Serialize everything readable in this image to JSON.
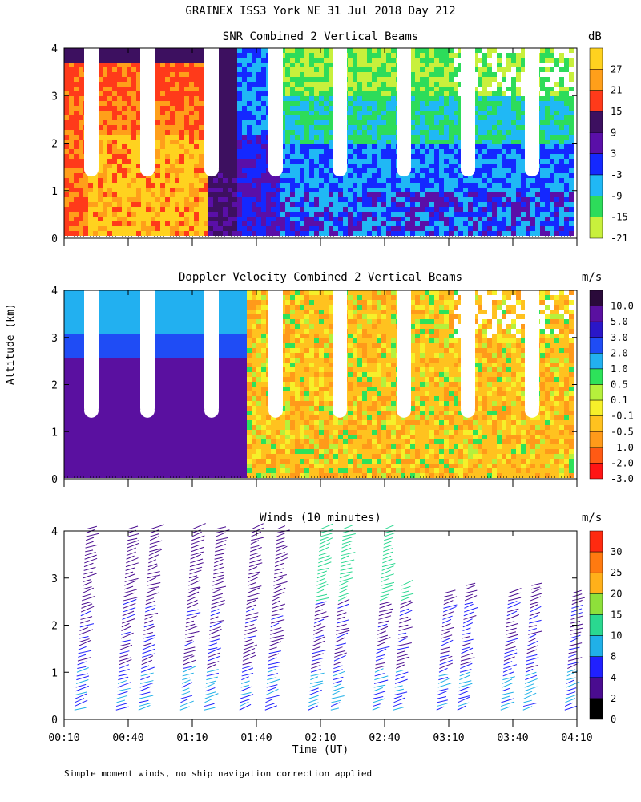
{
  "figure": {
    "title": "GRAINEX ISS3 York NE  31 Jul 2018 Day 212",
    "shared_ylabel": "Altitude (km)",
    "xlabel": "Time (UT)",
    "footnote": "Simple moment winds, no ship navigation correction applied"
  },
  "chart_data": [
    {
      "type": "heatmap",
      "title": "SNR Combined 2 Vertical Beams",
      "colorbar_unit": "dB",
      "ylim": [
        0,
        4
      ],
      "yticks": [
        "0",
        "1",
        "2",
        "3",
        "4"
      ],
      "colorbar_labels": [
        "27",
        "21",
        "15",
        "9",
        "3",
        "-3",
        "-9",
        "-15",
        "-21"
      ],
      "colors": [
        "#ffd21f",
        "#ff9f1a",
        "#ff3a1a",
        "#3d1060",
        "#5a0fa8",
        "#1428ff",
        "#20b8f5",
        "#2ddc5a",
        "#c8f03c"
      ],
      "gaps_above_km": [
        1.45,
        1.45,
        1.45,
        1.45,
        1.45,
        1.45,
        1.45,
        1.45
      ],
      "description_levels": {
        "below_0415": "high SNR 15-27 dB",
        "after_0140": "low SNR -3 to -21 dB"
      }
    },
    {
      "type": "heatmap",
      "title": "Doppler Velocity Combined 2 Vertical Beams",
      "colorbar_unit": "m/s",
      "ylim": [
        0,
        4
      ],
      "yticks": [
        "0",
        "1",
        "2",
        "3",
        "4"
      ],
      "colorbar_labels": [
        "10.0",
        "5.0",
        "3.0",
        "2.0",
        "1.0",
        "0.5",
        "0.1",
        "-0.1",
        "-0.5",
        "-1.0",
        "-2.0",
        "-3.0"
      ],
      "colors": [
        "#2a0a3a",
        "#5a10a0",
        "#2a16c8",
        "#1f4cf5",
        "#22b0f0",
        "#2de25a",
        "#b6f03c",
        "#f6f02a",
        "#ffc21f",
        "#ff9a1a",
        "#ff5a14",
        "#ff1414"
      ]
    },
    {
      "type": "scatter",
      "title": "Winds (10 minutes)",
      "colorbar_unit": "m/s",
      "ylim": [
        0,
        4
      ],
      "yticks": [
        "0",
        "1",
        "2",
        "3",
        "4"
      ],
      "colorbar_labels": [
        "30",
        "25",
        "20",
        "15",
        "10",
        "8",
        "4",
        "2",
        "0"
      ],
      "colors": [
        "#ff2a10",
        "#ff7a10",
        "#ffb01a",
        "#8ee03a",
        "#2ad890",
        "#20b0e8",
        "#2020ff",
        "#4a0c90",
        "#000000"
      ],
      "x_ticks": [
        "00:10",
        "00:40",
        "01:10",
        "01:40",
        "02:10",
        "02:40",
        "03:10",
        "03:40",
        "04:10"
      ],
      "profile_times": [
        "00:16",
        "00:37",
        "00:46",
        "01:08",
        "01:17",
        "01:33",
        "01:43",
        "02:08",
        "02:14",
        "02:38",
        "02:43",
        "03:08",
        "03:14",
        "03:38",
        "03:42",
        "04:08"
      ]
    }
  ]
}
